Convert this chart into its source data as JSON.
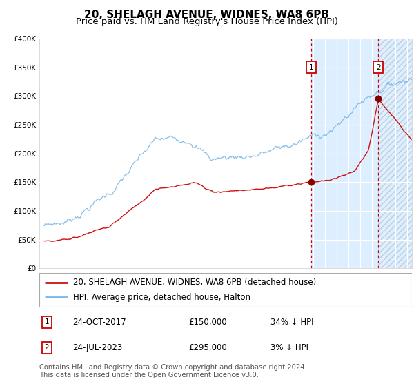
{
  "title": "20, SHELAGH AVENUE, WIDNES, WA8 6PB",
  "subtitle": "Price paid vs. HM Land Registry's House Price Index (HPI)",
  "ylim": [
    0,
    400000
  ],
  "yticks": [
    0,
    50000,
    100000,
    150000,
    200000,
    250000,
    300000,
    350000,
    400000
  ],
  "ytick_labels": [
    "£0",
    "£50K",
    "£100K",
    "£150K",
    "£200K",
    "£250K",
    "£300K",
    "£350K",
    "£400K"
  ],
  "xlim_start": 1994.58,
  "xlim_end": 2026.42,
  "hpi_color": "#7ab8e8",
  "price_color": "#cc1111",
  "plot_bg": "#ffffff",
  "span_color": "#ddeeff",
  "hatch_color": "#c8d8ee",
  "sale1_x": 2017.82,
  "sale1_y": 150000,
  "sale1_label": "1",
  "sale1_date": "24-OCT-2017",
  "sale1_price": "£150,000",
  "sale1_hpi": "34% ↓ HPI",
  "sale2_x": 2023.55,
  "sale2_y": 295000,
  "sale2_label": "2",
  "sale2_date": "24-JUL-2023",
  "sale2_price": "£295,000",
  "sale2_hpi": "3% ↓ HPI",
  "legend_line1": "20, SHELAGH AVENUE, WIDNES, WA8 6PB (detached house)",
  "legend_line2": "HPI: Average price, detached house, Halton",
  "footer": "Contains HM Land Registry data © Crown copyright and database right 2024.\nThis data is licensed under the Open Government Licence v3.0.",
  "title_fontsize": 11,
  "subtitle_fontsize": 9.5,
  "tick_fontsize": 7.5,
  "legend_fontsize": 8.5,
  "footer_fontsize": 7.2
}
